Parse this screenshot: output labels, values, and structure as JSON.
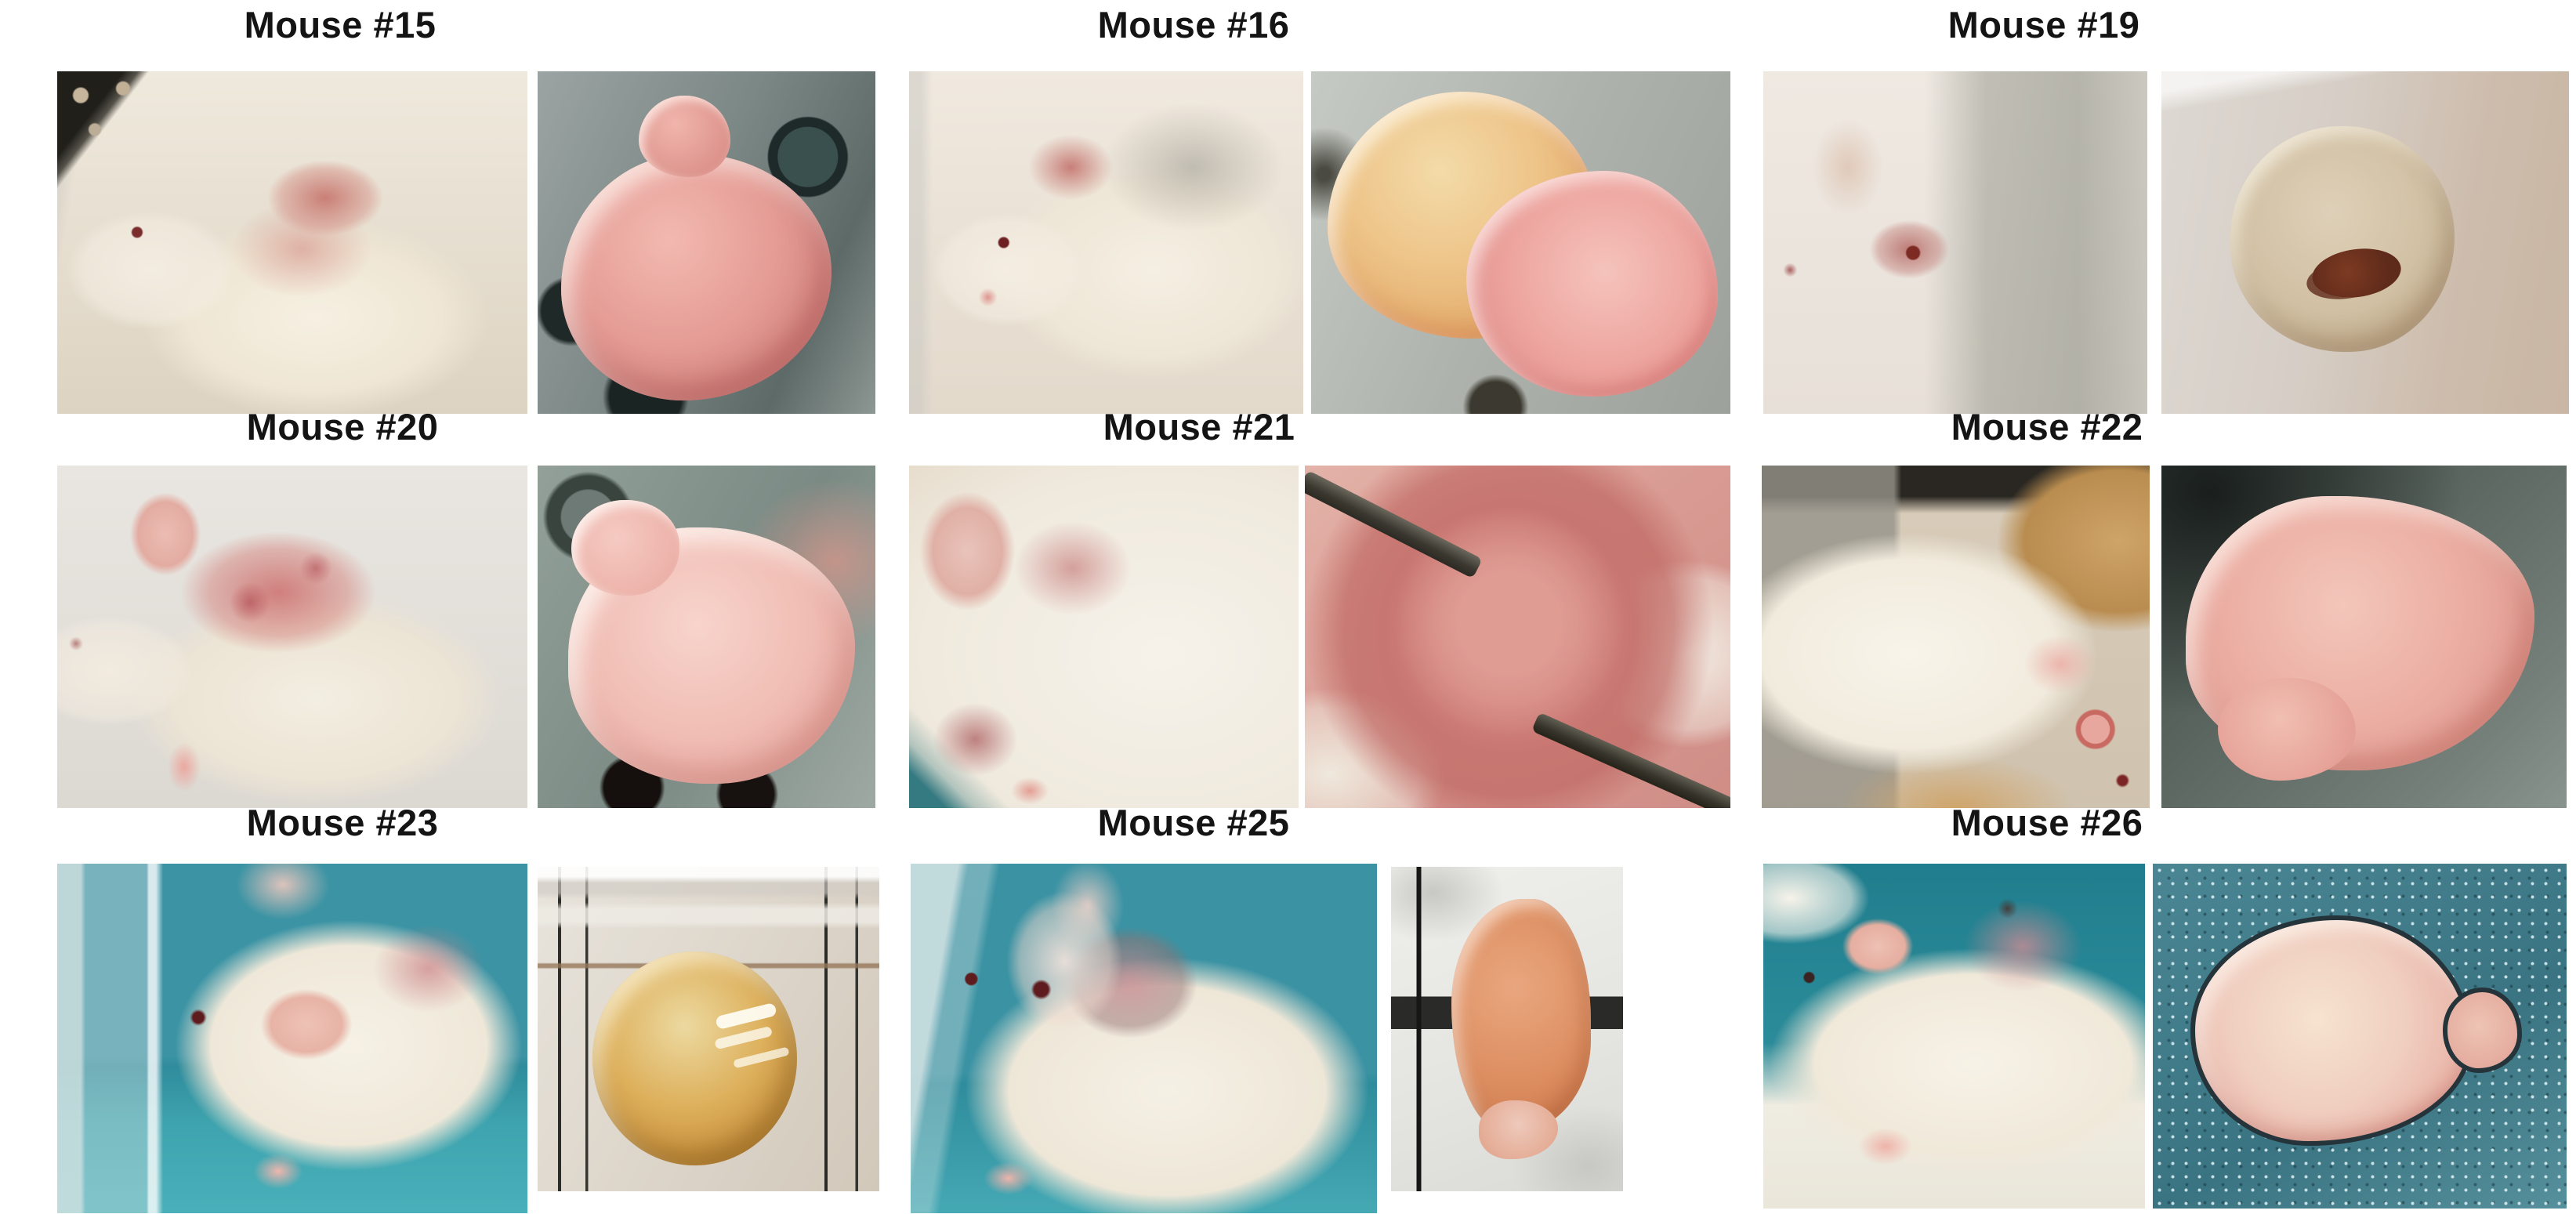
{
  "figure": {
    "panels": [
      {
        "id": "mouse-15",
        "label": "Mouse #15",
        "photos": [
          {
            "alt": "Anesthetized white mouse with shaved pink flank lying on paper towel, dark dotted board in corner"
          },
          {
            "alt": "Excised pink lobulated tumor on perforated metal tray"
          }
        ]
      },
      {
        "id": "mouse-16",
        "label": "Mouse #16",
        "photos": [
          {
            "alt": "Anesthetized white mouse with reddened shaved shoulder patch lying on pale towel"
          },
          {
            "alt": "Excised tumor with translucent amber lobe, red vessels and pink nodules on metal surface"
          }
        ]
      },
      {
        "id": "mouse-19",
        "label": "Mouse #19",
        "photos": [
          {
            "alt": "Hazy photo of white mouse on dotted towel with red lesion on shaved patch"
          },
          {
            "alt": "Round tan tumor with dark hemorrhagic spot in glass dish"
          }
        ]
      },
      {
        "id": "mouse-20",
        "label": "Mouse #20",
        "photos": [
          {
            "alt": "White mouse with large mottled red shaved patch on back lying on towel"
          },
          {
            "alt": "Large pale pink glossy lobed tumor on perforated metal tray"
          }
        ]
      },
      {
        "id": "mouse-21",
        "label": "Mouse #21",
        "photos": [
          {
            "alt": "Close-up of white mouse with pale ear and pink shaved tumor site"
          },
          {
            "alt": "Close-up of dusky pink tumor grasped with dark forceps over white fur"
          }
        ]
      },
      {
        "id": "mouse-22",
        "label": "Mouse #22",
        "photos": [
          {
            "alt": "White mouse viewed from above on tan wood-chip bedding with cage bars"
          },
          {
            "alt": "Pale pink lumpy excised tumor on dark metal background"
          }
        ]
      },
      {
        "id": "mouse-23",
        "label": "Mouse #23",
        "photos": [
          {
            "alt": "White mouse with nose in clear anesthesia tube on teal surgical drape"
          },
          {
            "alt": "Round amber-yellow mass inside graduated glass container with black marks"
          }
        ]
      },
      {
        "id": "mouse-25",
        "label": "Mouse #25",
        "photos": [
          {
            "alt": "White mouse with nose cone and shaved shoulder patch on teal drape"
          },
          {
            "alt": "Orange-pink teardrop tumor in frosted tube beside black gradation line"
          }
        ]
      },
      {
        "id": "mouse-26",
        "label": "Mouse #26",
        "photos": [
          {
            "alt": "White mouse lying on towel over teal drape with shaved pink shoulder patch"
          },
          {
            "alt": "Pale pink flattened tumor with dark outline on sparkly teal surface"
          }
        ]
      }
    ]
  }
}
